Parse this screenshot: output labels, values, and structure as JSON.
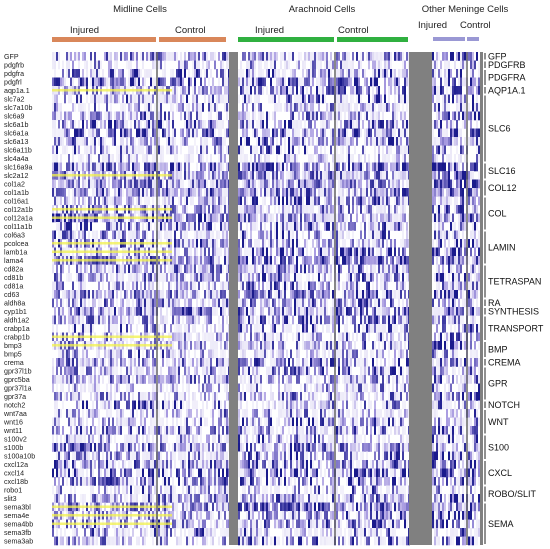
{
  "chart_data": {
    "type": "heatmap",
    "sections": [
      {
        "title": "Midline Cells",
        "groups": [
          "Injured",
          "Control"
        ]
      },
      {
        "title": "Arachnoid Cells",
        "groups": [
          "Injured",
          "Control"
        ]
      },
      {
        "title": "Other Meninge Cells",
        "groups": [
          "Injured",
          "Control"
        ]
      }
    ],
    "group_colors": {
      "midline": "#d9875a",
      "arachnoid": "#30b040",
      "other": "#9a98d4"
    },
    "heat_colors": {
      "low": "#ffffff",
      "mid": "#a79ae0",
      "high": "#1a1a8c",
      "highlight": "#f2f24a",
      "separator": "#808080"
    },
    "genes": [
      "GFP",
      "pdgfrb",
      "pdgfra",
      "pdgfrl",
      "aqp1a.1",
      "slc7a2",
      "slc7a10b",
      "slc6a9",
      "slc6a1b",
      "slc6a1a",
      "slc6a13",
      "slc6a11b",
      "slc4a4a",
      "slc16a9a",
      "slc2a12",
      "col1a2",
      "col1a1b",
      "col16a1",
      "col12a1b",
      "col12a1a",
      "col11a1b",
      "col6a3",
      "pcolcea",
      "lamb1a",
      "lama4",
      "cd82a",
      "cd81b",
      "cd81a",
      "cd63",
      "aldh8a",
      "cyp1b1",
      "aldh1a2",
      "crabp1a",
      "crabp1b",
      "bmp3",
      "bmp5",
      "crema",
      "gpr37l1b",
      "gprc5ba",
      "gpr37l1a",
      "gpr37a",
      "notch2",
      "wnt7aa",
      "wnt16",
      "wnt11",
      "s100v2",
      "s100b",
      "s100a10b",
      "cxcl12a",
      "cxcl14",
      "cxcl18b",
      "robo1",
      "slit3",
      "sema3bl",
      "sema4e",
      "sema4bb",
      "sema3fb",
      "sema3ab"
    ],
    "highlighted_genes": [
      "aqp1a.1",
      "slc2a12",
      "col12a1b",
      "col12a1a",
      "pcolcea",
      "lamb1a",
      "lama4",
      "crabp1b",
      "bmp3",
      "sema3bl",
      "sema4e",
      "sema4bb"
    ],
    "modules": [
      {
        "label": "GFP",
        "first": "GFP",
        "last": "GFP"
      },
      {
        "label": "PDGFRB",
        "first": "pdgfrb",
        "last": "pdgfrb"
      },
      {
        "label": "PDGFRA",
        "first": "pdgfra",
        "last": "pdgfrl"
      },
      {
        "label": "AQP1A.1",
        "first": "aqp1a.1",
        "last": "aqp1a.1"
      },
      {
        "label": "SLC6",
        "first": "slc7a2",
        "last": "slc4a4a"
      },
      {
        "label": "SLC16",
        "first": "slc16a9a",
        "last": "slc2a12"
      },
      {
        "label": "COL12",
        "first": "col1a2",
        "last": "col1a1b"
      },
      {
        "label": "COL",
        "first": "col16a1",
        "last": "col11a1b"
      },
      {
        "label": "LAMIN",
        "first": "col6a3",
        "last": "lama4"
      },
      {
        "label": "TETRASPAN",
        "first": "cd82a",
        "last": "cd63"
      },
      {
        "label": "RA",
        "first": "aldh8a",
        "last": "aldh8a"
      },
      {
        "label": "SYNTHESIS",
        "first": "cyp1b1",
        "last": "cyp1b1"
      },
      {
        "label": "TRANSPORT",
        "first": "aldh1a2",
        "last": "crabp1b"
      },
      {
        "label": "BMP",
        "first": "bmp3",
        "last": "bmp5"
      },
      {
        "label": "CREMA",
        "first": "crema",
        "last": "crema"
      },
      {
        "label": "GPR",
        "first": "gpr37l1b",
        "last": "gpr37a"
      },
      {
        "label": "NOTCH",
        "first": "notch2",
        "last": "notch2"
      },
      {
        "label": "WNT",
        "first": "wnt7aa",
        "last": "wnt11"
      },
      {
        "label": "S100",
        "first": "s100v2",
        "last": "s100a10b"
      },
      {
        "label": "CXCL",
        "first": "cxcl12a",
        "last": "cxcl18b"
      },
      {
        "label": "ROBO/SLIT",
        "first": "robo1",
        "last": "slit3"
      },
      {
        "label": "SEMA",
        "first": "sema3bl",
        "last": "sema3ab"
      }
    ]
  }
}
